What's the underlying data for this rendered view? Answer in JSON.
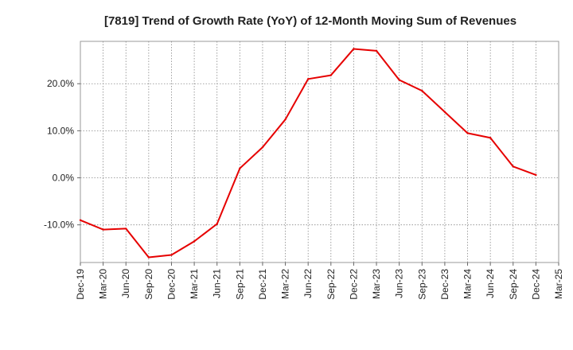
{
  "chart_data": {
    "type": "line",
    "title": "[7819]  Trend of Growth Rate (YoY) of 12-Month Moving Sum of Revenues",
    "xlabel": "",
    "ylabel": "",
    "x_ticks": [
      "Dec-19",
      "Mar-20",
      "Jun-20",
      "Sep-20",
      "Dec-20",
      "Mar-21",
      "Jun-21",
      "Sep-21",
      "Dec-21",
      "Mar-22",
      "Jun-22",
      "Sep-22",
      "Dec-22",
      "Mar-23",
      "Jun-23",
      "Sep-23",
      "Dec-23",
      "Mar-24",
      "Jun-24",
      "Sep-24",
      "Dec-24",
      "Mar-25"
    ],
    "y_ticks": [
      -10,
      0,
      10,
      20
    ],
    "y_tick_labels": [
      "-10.0%",
      "0.0%",
      "10.0%",
      "20.0%"
    ],
    "ylim": [
      -18,
      29
    ],
    "grid": true,
    "line_color": "#e60000",
    "series": [
      {
        "x": [
          "Dec-19",
          "Mar-20",
          "Jun-20",
          "Sep-20",
          "Dec-20",
          "Mar-21",
          "Jun-21",
          "Sep-21",
          "Dec-21",
          "Mar-22",
          "Jun-22",
          "Sep-22",
          "Dec-22",
          "Mar-23",
          "Jun-23",
          "Sep-23",
          "Dec-23",
          "Mar-24",
          "Jun-24",
          "Sep-24",
          "Dec-24"
        ],
        "values": [
          -9.0,
          -11.0,
          -10.8,
          -16.9,
          -16.4,
          -13.5,
          -9.8,
          2.0,
          6.5,
          12.4,
          21.0,
          21.8,
          27.4,
          27.0,
          20.8,
          18.5,
          14.0,
          9.5,
          8.5,
          2.4,
          0.6
        ]
      }
    ]
  }
}
